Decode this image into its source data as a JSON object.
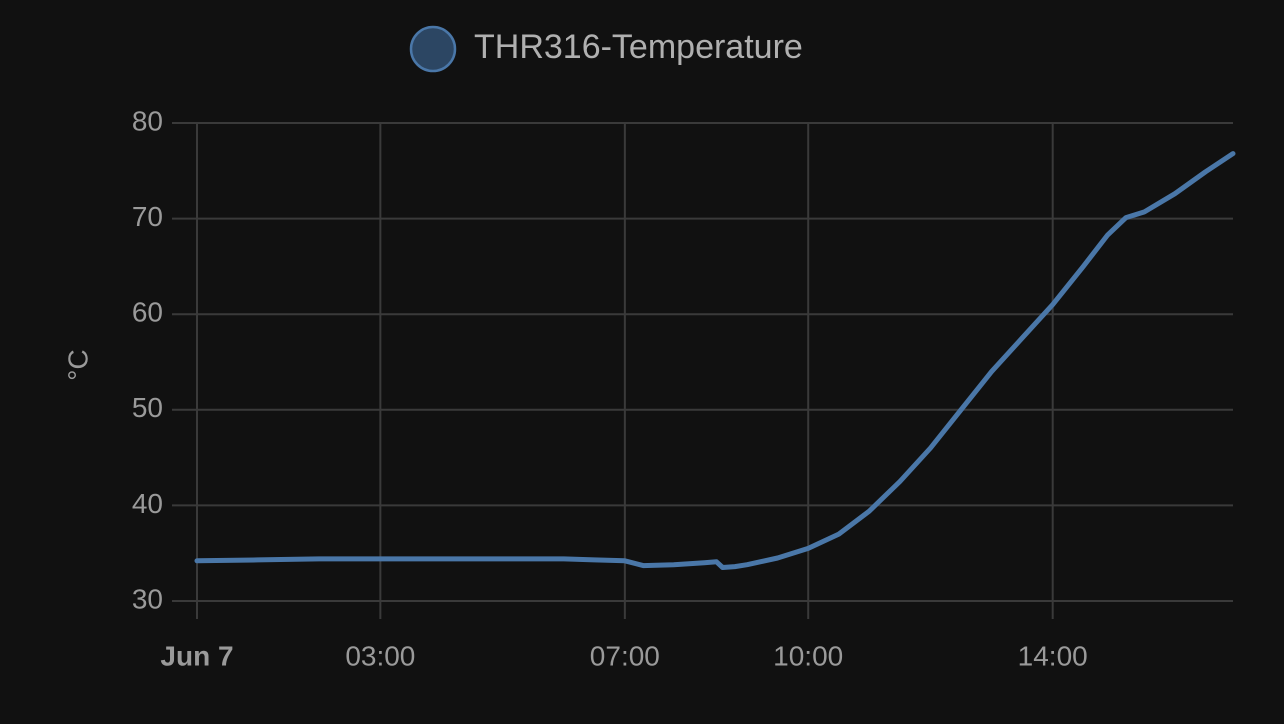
{
  "chart_data": {
    "type": "line",
    "y_label": "°C",
    "x": [
      0,
      1,
      2,
      3,
      4,
      5,
      6,
      6.5,
      7,
      7.3,
      7.8,
      8.3,
      8.5,
      8.6,
      8.8,
      9,
      9.5,
      10,
      10.5,
      11,
      11.5,
      12,
      12.5,
      13,
      13.5,
      14,
      14.5,
      14.9,
      15.2,
      15.5,
      16,
      16.5,
      16.95
    ],
    "series": [
      {
        "name": "THR316-Temperature",
        "color": "#4a77a8",
        "values": [
          34.2,
          34.3,
          34.4,
          34.4,
          34.4,
          34.4,
          34.4,
          34.3,
          34.2,
          33.7,
          33.8,
          34.0,
          34.1,
          33.5,
          33.6,
          33.8,
          34.5,
          35.5,
          37.0,
          39.4,
          42.5,
          46.0,
          50.0,
          54.0,
          57.5,
          61.0,
          65.0,
          68.3,
          70.1,
          70.7,
          72.6,
          74.9,
          76.8
        ]
      }
    ],
    "xlim": [
      0,
      16.95
    ],
    "xticks": [
      {
        "value": 0,
        "label": "Jun 7"
      },
      {
        "value": 3,
        "label": "03:00"
      },
      {
        "value": 7,
        "label": "07:00"
      },
      {
        "value": 10,
        "label": "10:00"
      },
      {
        "value": 14,
        "label": "14:00"
      }
    ],
    "ylim": [
      30,
      80
    ],
    "yticks": [
      30,
      40,
      50,
      60,
      70,
      80
    ],
    "grid": true
  }
}
